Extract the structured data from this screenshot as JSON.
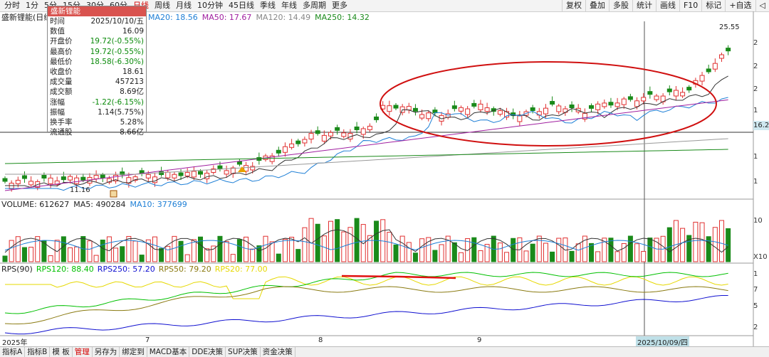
{
  "toolbar": {
    "left": [
      "分时",
      "1分",
      "5分",
      "15分",
      "30分",
      "60分",
      "日线",
      "周线",
      "月线",
      "10分钟",
      "45日线",
      "季线",
      "年线",
      "多周期",
      "更多"
    ],
    "active": "日线",
    "right": [
      "复权",
      "叠加",
      "多股",
      "统计",
      "画线",
      "F10",
      "标记",
      "+自选",
      "◁"
    ]
  },
  "stock_name": "盛新锂能(日线)",
  "ma_legend": [
    {
      "label": "MA20: 18.56",
      "color": "#1e7fd6"
    },
    {
      "label": "MA50: 17.67",
      "color": "#a020a0"
    },
    {
      "label": "MA120: 14.49",
      "color": "#888888"
    },
    {
      "label": "MA250: 14.32",
      "color": "#1a8a1a"
    }
  ],
  "infobox": {
    "title": "盛新锂能",
    "rows": [
      {
        "k": "时间",
        "v": "2025/10/10/五",
        "green": false
      },
      {
        "k": "数值",
        "v": "16.09",
        "green": false
      },
      {
        "k": "开盘价",
        "v": "19.72(-0.55%)",
        "green": true
      },
      {
        "k": "最高价",
        "v": "19.72(-0.55%)",
        "green": true
      },
      {
        "k": "最低价",
        "v": "18.58(-6.30%)",
        "green": true
      },
      {
        "k": "收盘价",
        "v": "18.61",
        "green": false
      },
      {
        "k": "成交量",
        "v": "457213",
        "green": false
      },
      {
        "k": "成交额",
        "v": "8.69亿",
        "green": false
      },
      {
        "k": "涨幅",
        "v": "-1.22(-6.15%)",
        "green": true
      },
      {
        "k": "振幅",
        "v": "1.14(5.75%)",
        "green": false
      },
      {
        "k": "换手率",
        "v": "5.28%",
        "green": false
      },
      {
        "k": "流通股",
        "v": "8.66亿",
        "green": false
      }
    ]
  },
  "price_marks": {
    "high": "25.55",
    "low": "11.16",
    "right_price": "16.2"
  },
  "volume_legend": [
    {
      "label": "VOLUME: 612627",
      "color": "#222222"
    },
    {
      "label": "MA5: 490284",
      "color": "#222222"
    },
    {
      "label": "MA10: 377699",
      "color": "#1e7fd6"
    }
  ],
  "rps_legend": [
    {
      "label": "RPS(90)",
      "color": "#222222"
    },
    {
      "label": "RPS120: 88.40",
      "color": "#00c000"
    },
    {
      "label": "RPS250: 57.20",
      "color": "#1010d0"
    },
    {
      "label": "RPS50: 79.20",
      "color": "#8a7a10"
    },
    {
      "label": "RPS20: 77.00",
      "color": "#e6d800"
    }
  ],
  "right_axis": {
    "price": [
      "2",
      "2",
      "2",
      "1",
      "1",
      "1"
    ],
    "volume": [
      "10",
      "X10"
    ],
    "rps": [
      "1",
      "7",
      "5",
      "2"
    ]
  },
  "date_axis": {
    "year": "2025年",
    "months": [
      "7",
      "8",
      "9"
    ],
    "cursor": "2025/10/09/四"
  },
  "bottom_tabs": [
    "指标A",
    "指标B",
    "模 板",
    "管理",
    "另存为",
    "绑定到",
    "MACD基本",
    "DDE决策",
    "SUP决策",
    "资金决策"
  ],
  "bottom_active": "管理",
  "colors": {
    "up": "#e03030",
    "down": "#1a8a1a",
    "ma20": "#1e7fd6",
    "ma50": "#a020a0",
    "ma5": "#333333",
    "annot": "#d01010"
  }
}
